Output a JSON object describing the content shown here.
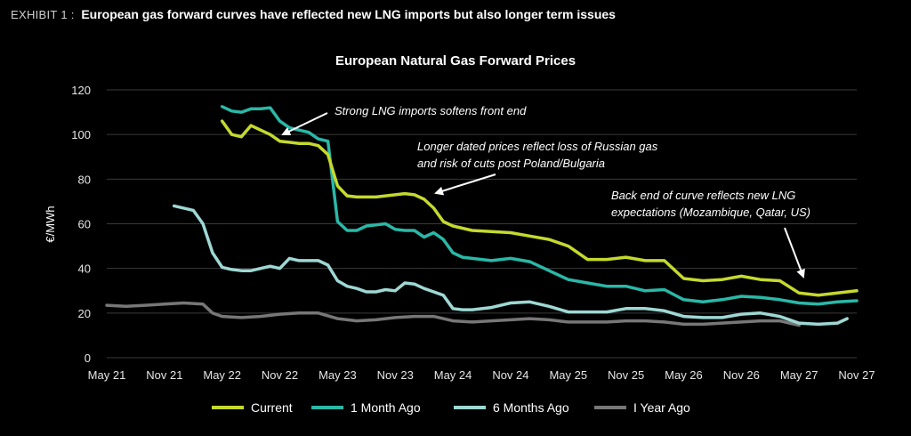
{
  "exhibit": {
    "label": "EXHIBIT 1 :",
    "headline": "European gas forward curves have reflected new LNG imports but also longer term issues"
  },
  "chart_data": {
    "type": "line",
    "title": "European Natural Gas Forward Prices",
    "xlabel": "",
    "ylabel": "€/MWh",
    "ylim": [
      0,
      120
    ],
    "yticks": [
      0,
      20,
      40,
      60,
      80,
      100,
      120
    ],
    "x_unit": "months since May 21",
    "xlim": [
      0,
      78
    ],
    "xtick_labels": [
      "May 21",
      "Nov 21",
      "May 22",
      "Nov 22",
      "May 23",
      "Nov 23",
      "May 24",
      "Nov 24",
      "May 25",
      "Nov 25",
      "May 26",
      "Nov 26",
      "May 27",
      "Nov 27"
    ],
    "grid": "horizontal",
    "legend_position": "bottom",
    "series": [
      {
        "name": "Current",
        "color": "#c5d92d",
        "x": [
          12,
          13,
          14,
          15,
          16,
          17,
          18,
          19,
          20,
          21,
          22,
          23,
          24,
          25,
          26,
          27,
          28,
          29,
          30,
          31,
          32,
          33,
          34,
          35,
          36,
          37,
          38,
          40,
          42,
          44,
          46,
          48,
          50,
          52,
          54,
          56,
          58,
          60,
          62,
          64,
          66,
          68,
          70,
          72,
          74,
          76,
          78
        ],
        "values": [
          106,
          100,
          99,
          104,
          102,
          100,
          97,
          96.5,
          96,
          96,
          95,
          91,
          77,
          72.5,
          72,
          72,
          72,
          72.5,
          73,
          73.5,
          73,
          71,
          67,
          61,
          59,
          58,
          57,
          56.5,
          56,
          54.5,
          53,
          50,
          44,
          44,
          45,
          43.5,
          43.5,
          35.5,
          34.5,
          35,
          36.5,
          35,
          34.5,
          29,
          28,
          29,
          30
        ]
      },
      {
        "name": "1 Month Ago",
        "color": "#2ab8a7",
        "x": [
          12,
          13,
          14,
          15,
          16,
          17,
          18,
          19,
          20,
          21,
          22,
          23,
          24,
          25,
          26,
          27,
          28,
          29,
          30,
          31,
          32,
          33,
          34,
          35,
          36,
          37,
          38,
          40,
          42,
          44,
          46,
          48,
          50,
          52,
          54,
          56,
          58,
          60,
          62,
          64,
          66,
          68,
          70,
          72,
          74,
          76,
          78
        ],
        "values": [
          112.5,
          110.5,
          110,
          111.5,
          111.5,
          112,
          106,
          103,
          102,
          101,
          98,
          97,
          61,
          57,
          57,
          59,
          59.5,
          60,
          57.5,
          57,
          57,
          54,
          56,
          53,
          47,
          45,
          44.5,
          43.5,
          44.5,
          43,
          39,
          35,
          33.5,
          32,
          32,
          30,
          30.5,
          26,
          25,
          26,
          27.5,
          27,
          26,
          24.5,
          24,
          25,
          25.5
        ]
      },
      {
        "name": "6 Months Ago",
        "color": "#9ed8d4",
        "x": [
          7,
          8,
          9,
          10,
          11,
          12,
          13,
          14,
          15,
          16,
          17,
          18,
          19,
          20,
          21,
          22,
          23,
          24,
          25,
          26,
          27,
          28,
          29,
          30,
          31,
          32,
          33,
          34,
          35,
          36,
          37,
          38,
          40,
          42,
          44,
          46,
          48,
          50,
          52,
          54,
          56,
          58,
          60,
          62,
          64,
          66,
          68,
          70,
          72,
          74,
          76,
          77
        ],
        "values": [
          68,
          67,
          66,
          60,
          47,
          40.5,
          39.5,
          39,
          39,
          40,
          41,
          40,
          44.5,
          43.5,
          43.5,
          43.5,
          41.5,
          34.5,
          32,
          31,
          29.5,
          29.5,
          30.5,
          30,
          33.5,
          33,
          31,
          29.5,
          28,
          22,
          21.5,
          21.5,
          22.5,
          24.5,
          25,
          23,
          20.5,
          20.5,
          20.5,
          22,
          22,
          21,
          18.5,
          18,
          18,
          19.5,
          20,
          18.5,
          15.5,
          15,
          15.5,
          17.5
        ]
      },
      {
        "name": "I Year Ago",
        "color": "#777777",
        "x": [
          0,
          2,
          4,
          6,
          8,
          10,
          11,
          12,
          14,
          16,
          18,
          20,
          22,
          24,
          26,
          28,
          30,
          32,
          34,
          36,
          38,
          40,
          42,
          44,
          46,
          48,
          50,
          52,
          54,
          56,
          58,
          60,
          62,
          64,
          66,
          68,
          70,
          72
        ],
        "values": [
          23.5,
          23,
          23.5,
          24,
          24.5,
          24,
          20,
          18.5,
          18,
          18.5,
          19.5,
          20,
          20,
          17.5,
          16.5,
          17,
          18,
          18.5,
          18.5,
          16.5,
          16,
          16.5,
          17,
          17.5,
          17,
          16,
          16,
          16,
          16.5,
          16.5,
          16,
          15,
          15,
          15.5,
          16,
          16.5,
          16.5,
          14.5
        ]
      }
    ],
    "annotations": [
      {
        "lines": [
          "Strong LNG imports softens front end"
        ]
      },
      {
        "lines": [
          "Longer dated prices reflect loss of Russian gas",
          "and risk of cuts post Poland/Bulgaria"
        ]
      },
      {
        "lines": [
          "Back end of curve reflects new LNG",
          "expectations (Mozambique, Qatar, US)"
        ]
      }
    ]
  }
}
